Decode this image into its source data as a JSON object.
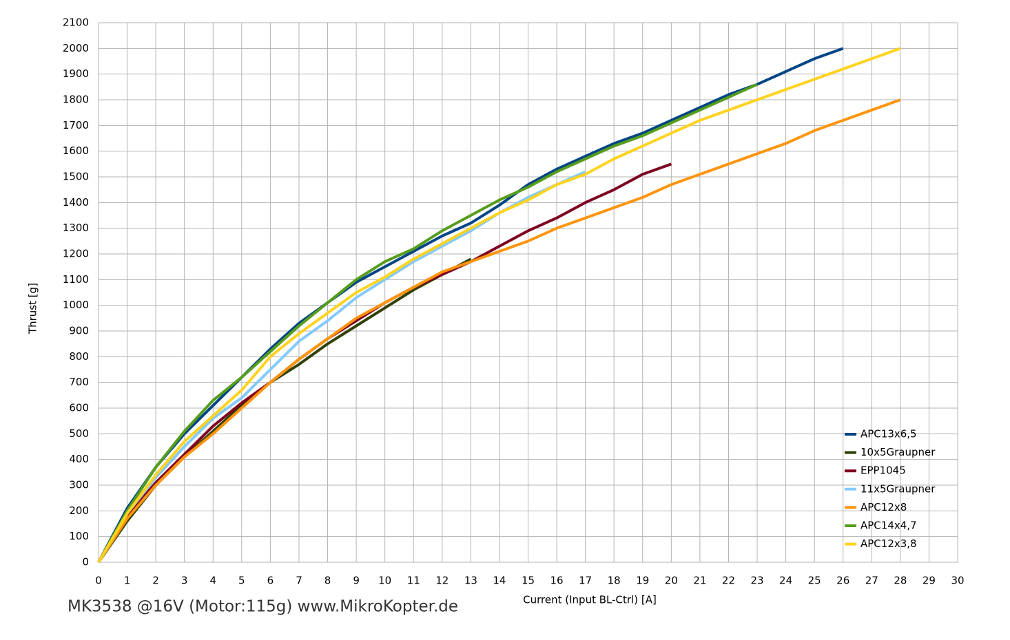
{
  "chart_data": {
    "type": "line",
    "x_label": "Current (Input BL-Ctrl) [A]",
    "y_label": "Thrust [g]",
    "annotation": "MK3538 @16V (Motor:115g) www.MikroKopter.de",
    "x": [
      0,
      1,
      2,
      3,
      4,
      5,
      6,
      7,
      8,
      9,
      10,
      11,
      12,
      13,
      14,
      15,
      16,
      17,
      18,
      19,
      20,
      21,
      22,
      23,
      24,
      25,
      26,
      27,
      28
    ],
    "series": [
      {
        "name": "APC13x6,5",
        "color": "#004586",
        "values": [
          0,
          210,
          370,
          500,
          610,
          720,
          830,
          930,
          1010,
          1090,
          1150,
          1210,
          1270,
          1320,
          1390,
          1470,
          1530,
          1580,
          1630,
          1670,
          1720,
          1770,
          1820,
          1860,
          1910,
          1960,
          2000,
          null,
          null
        ]
      },
      {
        "name": "10x5Graupner",
        "color": "#314004",
        "values": [
          0,
          160,
          300,
          410,
          510,
          610,
          700,
          770,
          850,
          920,
          990,
          1060,
          1120,
          1180,
          null,
          null,
          null,
          null,
          null,
          null,
          null,
          null,
          null,
          null,
          null,
          null,
          null,
          null,
          null
        ]
      },
      {
        "name": "EPP1045",
        "color": "#7e0021",
        "values": [
          0,
          180,
          310,
          420,
          530,
          620,
          700,
          790,
          870,
          940,
          1010,
          1070,
          1120,
          1170,
          1230,
          1290,
          1340,
          1400,
          1450,
          1510,
          1550,
          null,
          null,
          null,
          null,
          null,
          null,
          null,
          null
        ]
      },
      {
        "name": "11x5Graupner",
        "color": "#83caff",
        "values": [
          0,
          190,
          330,
          450,
          560,
          640,
          750,
          860,
          940,
          1030,
          1100,
          1170,
          1230,
          1290,
          1360,
          1420,
          1470,
          1520,
          null,
          null,
          null,
          null,
          null,
          null,
          null,
          null,
          null,
          null,
          null
        ]
      },
      {
        "name": "APC12x8",
        "color": "#ff950e",
        "values": [
          0,
          170,
          300,
          410,
          500,
          600,
          700,
          790,
          870,
          950,
          1010,
          1070,
          1130,
          1170,
          1210,
          1250,
          1300,
          1340,
          1380,
          1420,
          1470,
          1510,
          1550,
          1590,
          1630,
          1680,
          1720,
          1760,
          1800
        ]
      },
      {
        "name": "APC14x4,7",
        "color": "#579d1c",
        "values": [
          0,
          200,
          370,
          510,
          630,
          720,
          820,
          920,
          1010,
          1100,
          1170,
          1220,
          1290,
          1350,
          1410,
          1460,
          1520,
          1570,
          1620,
          1660,
          1710,
          1760,
          1810,
          1860,
          null,
          null,
          null,
          null,
          null
        ]
      },
      {
        "name": "APC12x3,8",
        "color": "#ffd320",
        "values": [
          0,
          190,
          340,
          470,
          570,
          670,
          800,
          890,
          970,
          1050,
          1110,
          1180,
          1240,
          1300,
          1360,
          1410,
          1470,
          1510,
          1570,
          1620,
          1670,
          1720,
          1760,
          1800,
          1840,
          1880,
          1920,
          1960,
          2000
        ]
      }
    ],
    "xlim": [
      0,
      30
    ],
    "xticks": [
      0,
      1,
      2,
      3,
      4,
      5,
      6,
      7,
      8,
      9,
      10,
      11,
      12,
      13,
      14,
      15,
      16,
      17,
      18,
      19,
      20,
      21,
      22,
      23,
      24,
      25,
      26,
      27,
      28,
      29,
      30
    ],
    "ylim": [
      0,
      2100
    ],
    "yticks": [
      0,
      100,
      200,
      300,
      400,
      500,
      600,
      700,
      800,
      900,
      1000,
      1100,
      1200,
      1300,
      1400,
      1500,
      1600,
      1700,
      1800,
      1900,
      2000,
      2100
    ],
    "grid": true,
    "legend": "lower right"
  }
}
